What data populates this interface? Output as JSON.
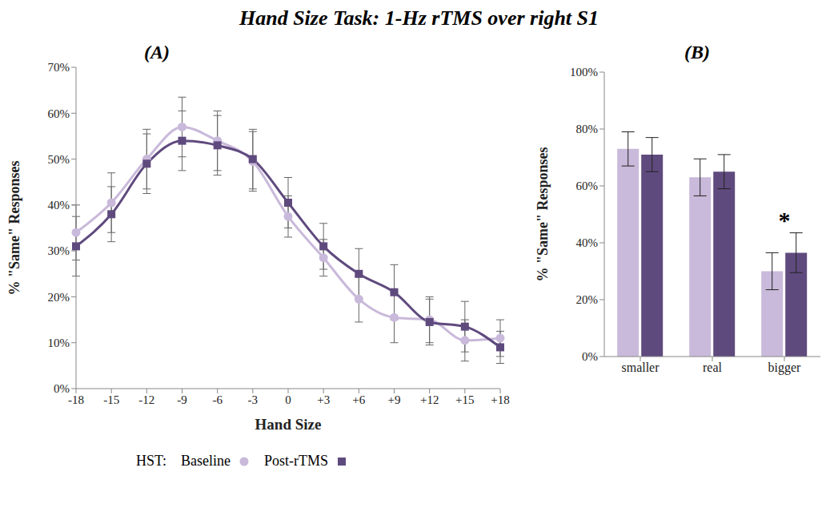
{
  "title": "Hand Size Task: 1-Hz rTMS over right S1",
  "chart_data": [
    {
      "type": "line",
      "title": "(A)",
      "x_label": "Hand Size",
      "y_label": "% \"Same\" Responses",
      "categories": [
        "-18",
        "-15",
        "-12",
        "-9",
        "-6",
        "-3",
        "0",
        "+3",
        "+6",
        "+9",
        "+12",
        "+15",
        "+18"
      ],
      "ylim": [
        0,
        70
      ],
      "yticks": [
        {
          "value": 0,
          "label": "0%"
        },
        {
          "value": 10,
          "label": "10%"
        },
        {
          "value": 20,
          "label": "20%"
        },
        {
          "value": 30,
          "label": "30%"
        },
        {
          "value": 40,
          "label": "40%"
        },
        {
          "value": 50,
          "label": "50%"
        },
        {
          "value": 60,
          "label": "60%"
        },
        {
          "value": 70,
          "label": "70%"
        }
      ],
      "grid": false,
      "legend": "bottom",
      "legend_title": "HST:",
      "series": [
        {
          "name": "Baseline",
          "color": "#c9b9da",
          "marker": "circle",
          "line_style": "solid",
          "values": [
            34,
            40.5,
            50,
            57,
            54,
            49.5,
            37.5,
            28.5,
            19.5,
            15.5,
            15,
            10.5,
            11
          ],
          "errors": [
            6,
            6.5,
            6.5,
            6.5,
            6.5,
            6.5,
            4.5,
            4,
            5,
            5.5,
            5,
            4.5,
            4
          ]
        },
        {
          "name": "Post-rTMS",
          "color": "#5f4a7e",
          "marker": "square",
          "line_style": "solid",
          "values": [
            31,
            38,
            49,
            54,
            53,
            50,
            40.5,
            31,
            25,
            21,
            14.5,
            13.5,
            9
          ],
          "errors": [
            6.5,
            6,
            6.5,
            6.5,
            6.5,
            6.5,
            5.5,
            5,
            5.5,
            6,
            5,
            5.5,
            3.5
          ]
        }
      ]
    },
    {
      "type": "bar",
      "title": "(B)",
      "y_label": "% \"Same\" Responses",
      "categories": [
        "smaller",
        "real",
        "bigger"
      ],
      "ylim": [
        0,
        100
      ],
      "yticks": [
        {
          "value": 0,
          "label": "0%"
        },
        {
          "value": 20,
          "label": "20%"
        },
        {
          "value": 40,
          "label": "40%"
        },
        {
          "value": 60,
          "label": "60%"
        },
        {
          "value": 80,
          "label": "80%"
        },
        {
          "value": 100,
          "label": "100%"
        }
      ],
      "grid": false,
      "series": [
        {
          "name": "Baseline",
          "color": "#c9b9da",
          "values": [
            73,
            63,
            30
          ],
          "errors": [
            6,
            6.5,
            6.5
          ]
        },
        {
          "name": "Post-rTMS",
          "color": "#5f4a7e",
          "values": [
            71,
            65,
            36.5
          ],
          "errors": [
            6,
            6,
            7
          ]
        }
      ],
      "annotations": [
        {
          "category": "bigger",
          "series": "Post-rTMS",
          "text": "*"
        }
      ]
    }
  ]
}
